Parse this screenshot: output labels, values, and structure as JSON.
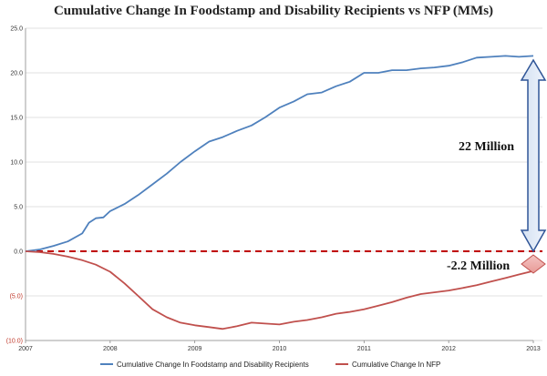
{
  "chart_data": {
    "type": "line",
    "title": "Cumulative Change In Foodstamp and Disability Recipients vs NFP (MMs)",
    "x_ticks": [
      "2007",
      "2008",
      "2009",
      "2010",
      "2011",
      "2012",
      "2013"
    ],
    "y_ticks": [
      {
        "value": 25,
        "label": "25.0"
      },
      {
        "value": 20,
        "label": "20.0"
      },
      {
        "value": 15,
        "label": "15.0"
      },
      {
        "value": 10,
        "label": "10.0"
      },
      {
        "value": 5,
        "label": "5.0"
      },
      {
        "value": 0,
        "label": "0.0"
      },
      {
        "value": -5,
        "label": "(5.0)"
      },
      {
        "value": -10,
        "label": "(10.0)"
      }
    ],
    "ylim": [
      -10,
      25
    ],
    "xlim": [
      2007,
      2013
    ],
    "grid": true,
    "legend_position": "bottom",
    "series": [
      {
        "name": "Cumulative Change In Foodstamp and Disability Recipients",
        "color": "#4f81bd",
        "points": [
          [
            2007.0,
            0.0
          ],
          [
            2007.17,
            0.2
          ],
          [
            2007.33,
            0.6
          ],
          [
            2007.5,
            1.1
          ],
          [
            2007.67,
            2.0
          ],
          [
            2007.75,
            3.2
          ],
          [
            2007.83,
            3.7
          ],
          [
            2007.92,
            3.8
          ],
          [
            2008.0,
            4.5
          ],
          [
            2008.17,
            5.3
          ],
          [
            2008.33,
            6.3
          ],
          [
            2008.5,
            7.5
          ],
          [
            2008.67,
            8.7
          ],
          [
            2008.83,
            10.0
          ],
          [
            2009.0,
            11.2
          ],
          [
            2009.17,
            12.3
          ],
          [
            2009.33,
            12.8
          ],
          [
            2009.5,
            13.5
          ],
          [
            2009.67,
            14.1
          ],
          [
            2009.83,
            15.0
          ],
          [
            2010.0,
            16.1
          ],
          [
            2010.17,
            16.8
          ],
          [
            2010.33,
            17.6
          ],
          [
            2010.5,
            17.8
          ],
          [
            2010.67,
            18.5
          ],
          [
            2010.83,
            19.0
          ],
          [
            2011.0,
            20.0
          ],
          [
            2011.17,
            20.0
          ],
          [
            2011.33,
            20.3
          ],
          [
            2011.5,
            20.3
          ],
          [
            2011.67,
            20.5
          ],
          [
            2011.83,
            20.6
          ],
          [
            2012.0,
            20.8
          ],
          [
            2012.17,
            21.2
          ],
          [
            2012.33,
            21.7
          ],
          [
            2012.5,
            21.8
          ],
          [
            2012.67,
            21.9
          ],
          [
            2012.83,
            21.8
          ],
          [
            2013.0,
            21.9
          ]
        ]
      },
      {
        "name": "Cumulative Change In NFP",
        "color": "#c0504d",
        "points": [
          [
            2007.0,
            0.0
          ],
          [
            2007.17,
            -0.1
          ],
          [
            2007.33,
            -0.3
          ],
          [
            2007.5,
            -0.6
          ],
          [
            2007.67,
            -1.0
          ],
          [
            2007.83,
            -1.5
          ],
          [
            2008.0,
            -2.3
          ],
          [
            2008.17,
            -3.6
          ],
          [
            2008.33,
            -5.0
          ],
          [
            2008.5,
            -6.5
          ],
          [
            2008.67,
            -7.4
          ],
          [
            2008.83,
            -8.0
          ],
          [
            2009.0,
            -8.3
          ],
          [
            2009.17,
            -8.5
          ],
          [
            2009.33,
            -8.7
          ],
          [
            2009.5,
            -8.4
          ],
          [
            2009.67,
            -8.0
          ],
          [
            2009.83,
            -8.1
          ],
          [
            2010.0,
            -8.2
          ],
          [
            2010.17,
            -7.9
          ],
          [
            2010.33,
            -7.7
          ],
          [
            2010.5,
            -7.4
          ],
          [
            2010.67,
            -7.0
          ],
          [
            2010.83,
            -6.8
          ],
          [
            2011.0,
            -6.5
          ],
          [
            2011.17,
            -6.1
          ],
          [
            2011.33,
            -5.7
          ],
          [
            2011.5,
            -5.2
          ],
          [
            2011.67,
            -4.8
          ],
          [
            2011.83,
            -4.6
          ],
          [
            2012.0,
            -4.4
          ],
          [
            2012.17,
            -4.1
          ],
          [
            2012.33,
            -3.8
          ],
          [
            2012.5,
            -3.4
          ],
          [
            2012.67,
            -3.0
          ],
          [
            2012.83,
            -2.6
          ],
          [
            2013.0,
            -2.2
          ]
        ]
      }
    ],
    "annotations": [
      {
        "text": "22 Million"
      },
      {
        "text": "-2.2 Million"
      }
    ]
  }
}
